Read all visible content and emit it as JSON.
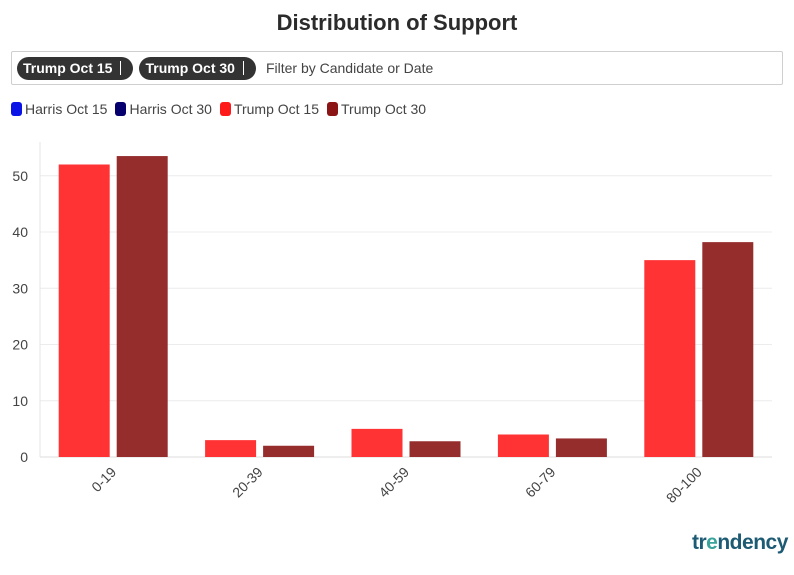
{
  "title": "Distribution of Support",
  "filter": {
    "chips": [
      "Trump Oct 15",
      "Trump Oct 30"
    ],
    "placeholder": "Filter by Candidate or Date"
  },
  "legend": [
    {
      "label": "Harris Oct 15",
      "color": "#0a14e6"
    },
    {
      "label": "Harris Oct 30",
      "color": "#05006e"
    },
    {
      "label": "Trump Oct 15",
      "color": "#ff1a1a"
    },
    {
      "label": "Trump Oct 30",
      "color": "#8b1414"
    }
  ],
  "logo": {
    "pre": "tr",
    "mid": "e",
    "post": "ndency"
  },
  "chart_data": {
    "type": "bar",
    "title": "Distribution of Support",
    "xlabel": "",
    "ylabel": "",
    "categories": [
      "0-19",
      "20-39",
      "40-59",
      "60-79",
      "80-100"
    ],
    "series": [
      {
        "name": "Trump Oct 15",
        "color": "#ff3333",
        "values": [
          52,
          3,
          5,
          4,
          35
        ]
      },
      {
        "name": "Trump Oct 30",
        "color": "#952d2d",
        "values": [
          53.5,
          2,
          2.8,
          3.3,
          38.2
        ]
      }
    ],
    "yticks": [
      0,
      10,
      20,
      30,
      40,
      50
    ],
    "ylim": [
      0,
      56
    ],
    "grid": true
  }
}
